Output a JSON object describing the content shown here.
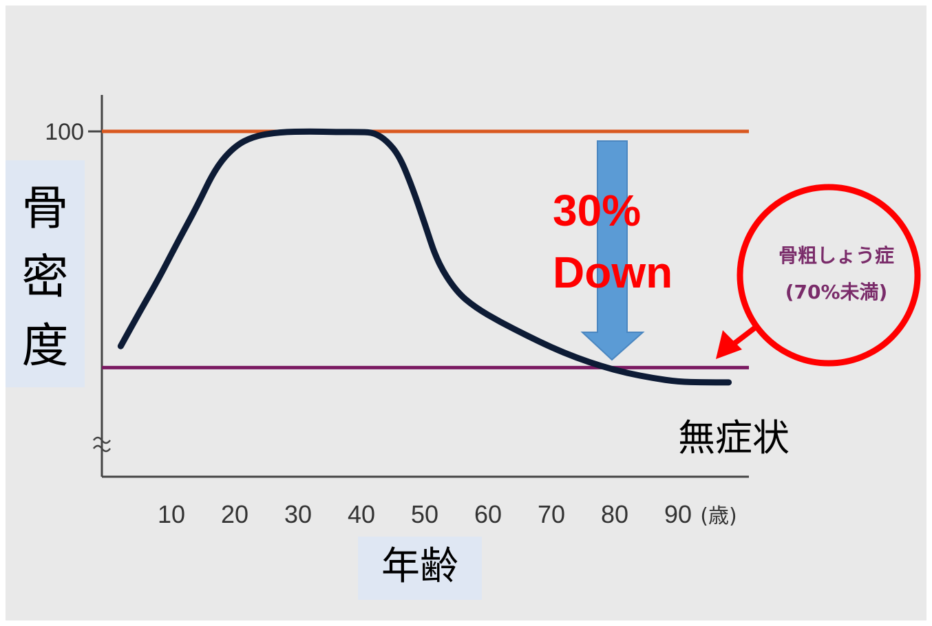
{
  "chart_data": {
    "type": "line",
    "ylabel": "骨密度",
    "xlabel": "年齢",
    "y_tick": "100",
    "x_ticks": [
      "10",
      "20",
      "30",
      "40",
      "50",
      "60",
      "70",
      "80",
      "90"
    ],
    "x_unit": "(歳)",
    "xlim": [
      0,
      103
    ],
    "ylim": [
      0,
      100
    ],
    "series": [
      {
        "x": [
          2,
          5,
          8,
          11,
          14,
          17,
          20,
          23,
          27,
          32,
          36,
          40,
          42,
          44,
          46,
          48,
          50,
          52,
          55,
          58,
          62,
          66,
          70,
          74,
          78,
          82,
          86,
          90,
          94,
          98
        ],
        "y": [
          65,
          70.6,
          76,
          82,
          87.7,
          94.1,
          97.6,
          99.2,
          99.9,
          100,
          99.9,
          99.9,
          99.8,
          98.5,
          96,
          91,
          85,
          78.7,
          73.9,
          71.3,
          68.9,
          66.8,
          64.8,
          63.1,
          61.7,
          60.6,
          59.8,
          59.2,
          59.1,
          59.1
        ]
      }
    ],
    "reference_lines": [
      {
        "value": 100,
        "color": "#d9581f"
      },
      {
        "value": 61.5,
        "color": "#7b1a62"
      }
    ],
    "annotations": {
      "drop_text_1": "30%",
      "drop_text_2": "Down",
      "zone_line_1": "骨粗しょう症",
      "zone_line_2": "(70%未満)",
      "curve_end": "無症状"
    },
    "colors": {
      "curve": "#0d1b35",
      "arrow": "#5b9bd5",
      "circle": "#ff0000",
      "axis": "#444444"
    }
  }
}
